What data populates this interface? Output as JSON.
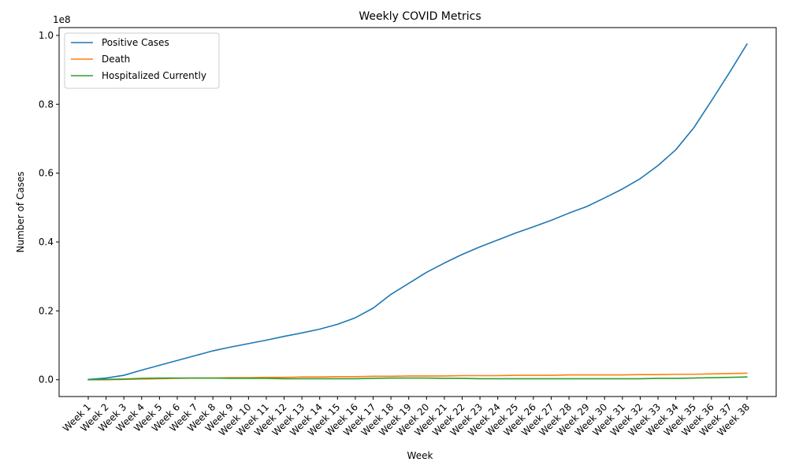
{
  "chart_data": {
    "type": "line",
    "title": "Weekly COVID Metrics",
    "xlabel": "Week",
    "ylabel": "Number of Cases",
    "y_multiplier_label": "1e8",
    "y_tick_labels": [
      "0.0",
      "0.2",
      "0.4",
      "0.6",
      "0.8",
      "1.0"
    ],
    "ylim": [
      -0.0487,
      1.0227
    ],
    "grid": false,
    "legend_position": "top-left",
    "categories": [
      "Week 1",
      "Week 2",
      "Week 3",
      "Week 4",
      "Week 5",
      "Week 6",
      "Week 7",
      "Week 8",
      "Week 9",
      "Week 10",
      "Week 11",
      "Week 12",
      "Week 13",
      "Week 14",
      "Week 15",
      "Week 16",
      "Week 17",
      "Week 18",
      "Week 19",
      "Week 20",
      "Week 21",
      "Week 22",
      "Week 23",
      "Week 24",
      "Week 25",
      "Week 26",
      "Week 27",
      "Week 28",
      "Week 29",
      "Week 30",
      "Week 31",
      "Week 32",
      "Week 33",
      "Week 34",
      "Week 35",
      "Week 36",
      "Week 37",
      "Week 38"
    ],
    "series": [
      {
        "name": "Positive Cases",
        "color": "#1f77b4",
        "values": [
          0.001,
          0.005,
          0.013,
          0.028,
          0.042,
          0.056,
          0.07,
          0.084,
          0.095,
          0.105,
          0.115,
          0.126,
          0.136,
          0.147,
          0.161,
          0.18,
          0.208,
          0.248,
          0.28,
          0.312,
          0.339,
          0.364,
          0.386,
          0.406,
          0.426,
          0.444,
          0.463,
          0.484,
          0.503,
          0.528,
          0.554,
          0.584,
          0.622,
          0.668,
          0.731,
          0.81,
          0.891,
          0.975
        ]
      },
      {
        "name": "Death",
        "color": "#ff7f0e",
        "values": [
          0.0,
          0.0,
          0.001,
          0.002,
          0.003,
          0.004,
          0.005,
          0.005,
          0.006,
          0.006,
          0.007,
          0.007,
          0.008,
          0.008,
          0.009,
          0.009,
          0.01,
          0.01,
          0.011,
          0.011,
          0.011,
          0.012,
          0.012,
          0.012,
          0.013,
          0.013,
          0.013,
          0.014,
          0.014,
          0.014,
          0.014,
          0.015,
          0.015,
          0.016,
          0.016,
          0.017,
          0.018,
          0.019
        ]
      },
      {
        "name": "Hospitalized Currently",
        "color": "#2ca02c",
        "values": [
          0.0,
          0.001,
          0.002,
          0.004,
          0.005,
          0.005,
          0.005,
          0.005,
          0.004,
          0.004,
          0.004,
          0.003,
          0.003,
          0.003,
          0.003,
          0.003,
          0.004,
          0.005,
          0.005,
          0.005,
          0.004,
          0.004,
          0.003,
          0.003,
          0.003,
          0.003,
          0.003,
          0.003,
          0.003,
          0.003,
          0.003,
          0.003,
          0.004,
          0.004,
          0.005,
          0.006,
          0.007,
          0.008
        ]
      }
    ]
  }
}
